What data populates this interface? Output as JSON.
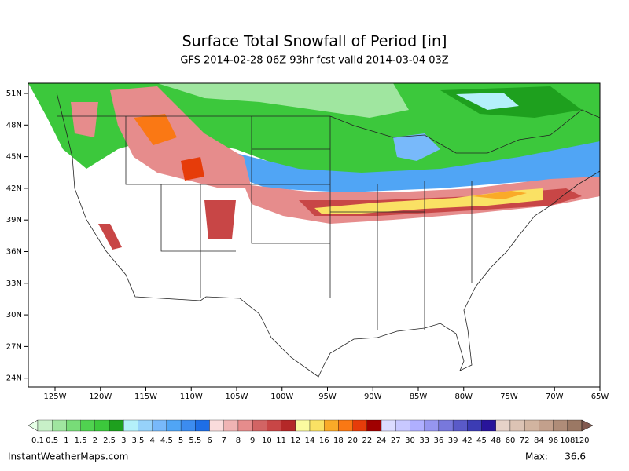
{
  "title": "Surface Total Snowfall of Period [in]",
  "subtitle": "GFS 2014-02-28 06Z 93hr fcst valid 2014-03-04 03Z",
  "lat_labels": [
    "51N",
    "48N",
    "45N",
    "42N",
    "39N",
    "36N",
    "33N",
    "30N",
    "27N",
    "24N"
  ],
  "lon_labels": [
    "125W",
    "120W",
    "115W",
    "110W",
    "105W",
    "100W",
    "95W",
    "90W",
    "85W",
    "80W",
    "75W",
    "70W",
    "65W"
  ],
  "legend": {
    "labels": [
      0.1,
      0.5,
      1,
      1.5,
      2,
      2.5,
      3,
      3.5,
      4,
      4.5,
      5,
      5.5,
      6,
      7,
      8,
      9,
      10,
      11,
      12,
      14,
      16,
      18,
      20,
      22,
      24,
      27,
      30,
      33,
      36,
      39,
      42,
      45,
      48,
      60,
      72,
      84,
      96,
      108,
      120
    ],
    "colors": [
      "#c8f0c8",
      "#a0e6a0",
      "#78dc78",
      "#50d250",
      "#3cc83c",
      "#1ea01e",
      "#b4f0fa",
      "#96d2fa",
      "#78b9fa",
      "#50a5f5",
      "#3c8cf0",
      "#1e6ee6",
      "#fadcdc",
      "#f0b4b4",
      "#e68c8c",
      "#d26464",
      "#c84646",
      "#b42828",
      "#fafaa0",
      "#fae164",
      "#faaa28",
      "#fa7814",
      "#e63c0a",
      "#a00000",
      "#dcdcff",
      "#c8c8ff",
      "#afafff",
      "#9696f0",
      "#7878dc",
      "#5a5ac8",
      "#3c3cb4",
      "#28149a",
      "#e6d2c8",
      "#dcc3b4",
      "#d2b4a0",
      "#c3a08c",
      "#af8c78",
      "#9b7864"
    ],
    "under_color": "#e6ffe6",
    "over_color": "#825a50"
  },
  "footer": {
    "source": "InstantWeatherMaps.com",
    "max_label": "Max:",
    "max_value": 36.6
  }
}
